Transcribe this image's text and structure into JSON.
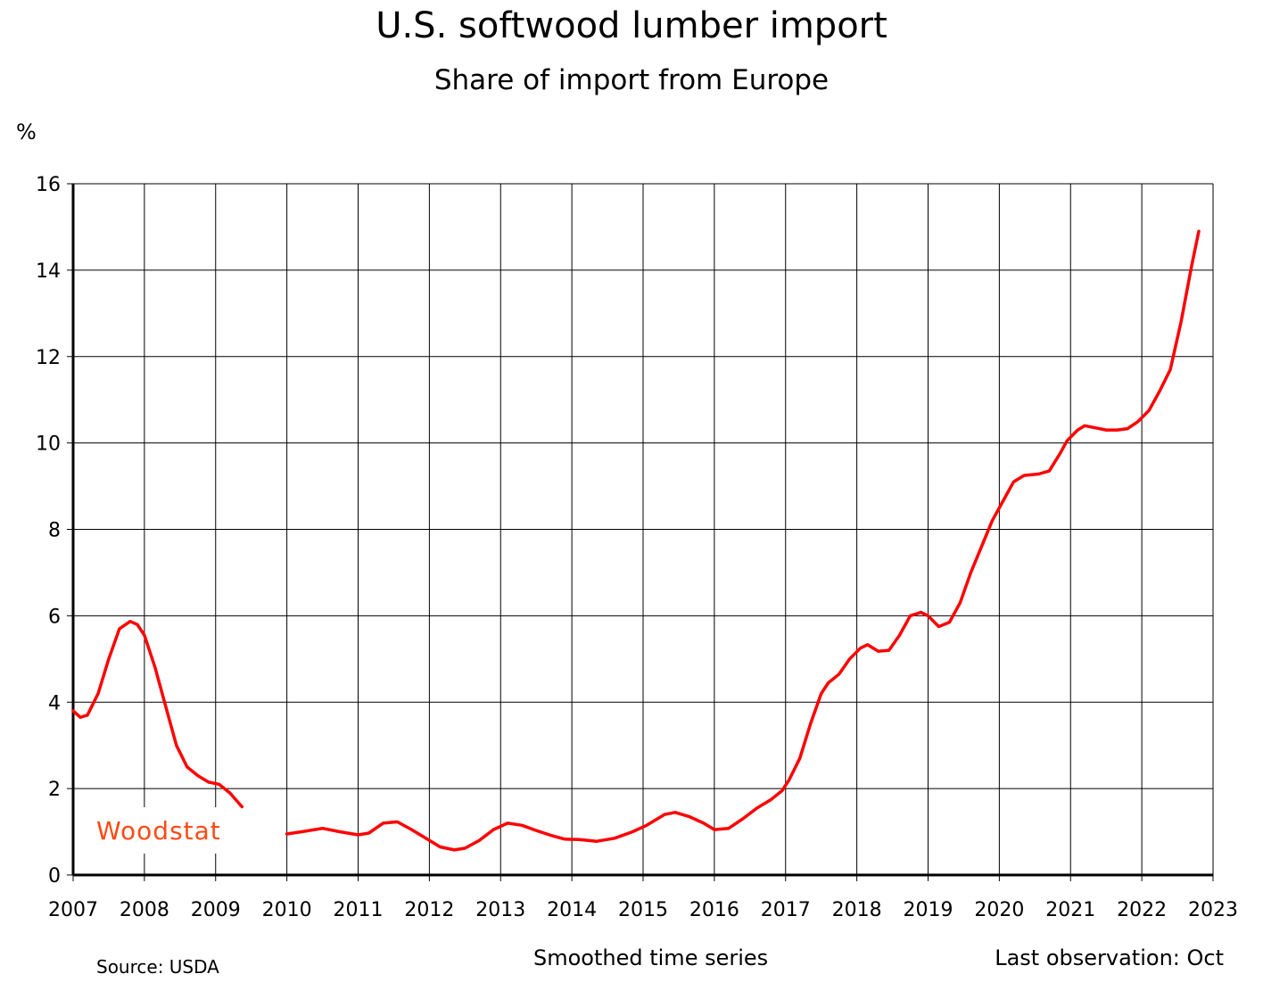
{
  "chart_data": {
    "type": "line",
    "title": "U.S. softwood lumber import",
    "subtitle": "Share of import from Europe",
    "ylabel": "%",
    "xlabel": "",
    "xlim": [
      2007,
      2023
    ],
    "ylim": [
      0,
      16
    ],
    "x_ticks": [
      "2007",
      "2008",
      "2009",
      "2010",
      "2011",
      "2012",
      "2013",
      "2014",
      "2015",
      "2016",
      "2017",
      "2018",
      "2019",
      "2020",
      "2021",
      "2022",
      "2023"
    ],
    "y_ticks": [
      "0",
      "2",
      "4",
      "6",
      "8",
      "10",
      "12",
      "14",
      "16"
    ],
    "grid": true,
    "series": [
      {
        "color": "#ff0000",
        "segments": [
          [
            [
              2007.0,
              3.8
            ],
            [
              2007.1,
              3.65
            ],
            [
              2007.2,
              3.7
            ],
            [
              2007.35,
              4.2
            ],
            [
              2007.5,
              5.0
            ],
            [
              2007.65,
              5.7
            ],
            [
              2007.8,
              5.87
            ],
            [
              2007.9,
              5.8
            ],
            [
              2008.0,
              5.55
            ],
            [
              2008.15,
              4.8
            ],
            [
              2008.3,
              3.9
            ],
            [
              2008.45,
              3.0
            ],
            [
              2008.6,
              2.5
            ],
            [
              2008.75,
              2.3
            ],
            [
              2008.9,
              2.15
            ],
            [
              2009.05,
              2.1
            ],
            [
              2009.2,
              1.9
            ],
            [
              2009.37,
              1.58
            ]
          ],
          [
            [
              2010.0,
              0.95
            ],
            [
              2010.2,
              1.0
            ],
            [
              2010.5,
              1.08
            ],
            [
              2010.75,
              1.0
            ],
            [
              2011.0,
              0.93
            ],
            [
              2011.15,
              0.97
            ],
            [
              2011.35,
              1.2
            ],
            [
              2011.55,
              1.23
            ],
            [
              2011.75,
              1.05
            ],
            [
              2011.95,
              0.85
            ],
            [
              2012.15,
              0.65
            ],
            [
              2012.35,
              0.58
            ],
            [
              2012.5,
              0.62
            ],
            [
              2012.7,
              0.8
            ],
            [
              2012.9,
              1.05
            ],
            [
              2013.1,
              1.2
            ],
            [
              2013.3,
              1.15
            ],
            [
              2013.5,
              1.03
            ],
            [
              2013.7,
              0.92
            ],
            [
              2013.9,
              0.83
            ],
            [
              2014.1,
              0.82
            ],
            [
              2014.35,
              0.78
            ],
            [
              2014.6,
              0.85
            ],
            [
              2014.85,
              1.0
            ],
            [
              2015.05,
              1.15
            ],
            [
              2015.3,
              1.4
            ],
            [
              2015.45,
              1.45
            ],
            [
              2015.65,
              1.35
            ],
            [
              2015.85,
              1.2
            ],
            [
              2016.0,
              1.05
            ],
            [
              2016.2,
              1.08
            ],
            [
              2016.4,
              1.3
            ],
            [
              2016.6,
              1.55
            ],
            [
              2016.8,
              1.75
            ],
            [
              2016.95,
              1.95
            ],
            [
              2017.05,
              2.2
            ],
            [
              2017.2,
              2.7
            ],
            [
              2017.35,
              3.5
            ],
            [
              2017.5,
              4.2
            ],
            [
              2017.6,
              4.45
            ],
            [
              2017.75,
              4.65
            ],
            [
              2017.9,
              5.0
            ],
            [
              2018.05,
              5.25
            ],
            [
              2018.15,
              5.33
            ],
            [
              2018.3,
              5.18
            ],
            [
              2018.45,
              5.2
            ],
            [
              2018.6,
              5.55
            ],
            [
              2018.75,
              6.0
            ],
            [
              2018.9,
              6.08
            ],
            [
              2019.0,
              6.0
            ],
            [
              2019.15,
              5.75
            ],
            [
              2019.3,
              5.85
            ],
            [
              2019.45,
              6.3
            ],
            [
              2019.6,
              7.0
            ],
            [
              2019.75,
              7.6
            ],
            [
              2019.9,
              8.2
            ],
            [
              2020.05,
              8.65
            ],
            [
              2020.2,
              9.1
            ],
            [
              2020.35,
              9.25
            ],
            [
              2020.55,
              9.28
            ],
            [
              2020.7,
              9.35
            ],
            [
              2020.85,
              9.75
            ],
            [
              2020.95,
              10.05
            ],
            [
              2021.1,
              10.3
            ],
            [
              2021.2,
              10.4
            ],
            [
              2021.35,
              10.35
            ],
            [
              2021.5,
              10.3
            ],
            [
              2021.65,
              10.3
            ],
            [
              2021.8,
              10.33
            ],
            [
              2021.95,
              10.5
            ],
            [
              2022.1,
              10.75
            ],
            [
              2022.25,
              11.2
            ],
            [
              2022.4,
              11.7
            ],
            [
              2022.55,
              12.8
            ],
            [
              2022.7,
              14.1
            ],
            [
              2022.8,
              14.9
            ]
          ]
        ]
      }
    ],
    "source": "Source: USDA",
    "note": "Smoothed time series",
    "last_observation": "Last observation: Oct",
    "logo": "Woodstat"
  }
}
